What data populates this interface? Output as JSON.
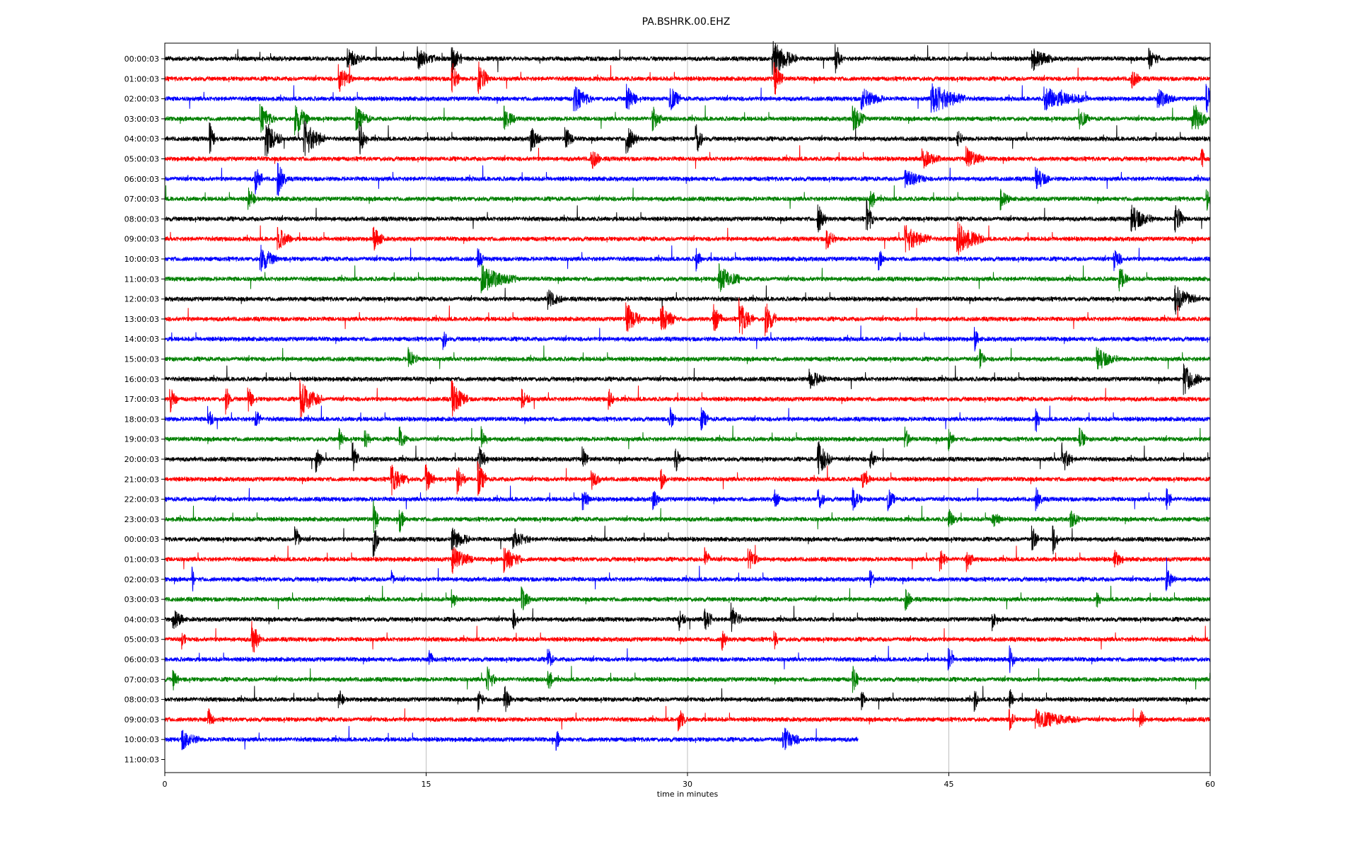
{
  "chart_data": {
    "type": "line",
    "title": "PA.BSHRK.00.EHZ",
    "xlabel": "time in minutes",
    "ylabel": "",
    "xlim": [
      0,
      60
    ],
    "x_ticks": [
      0,
      15,
      30,
      45,
      60
    ],
    "grid_vertical": true,
    "trace_colors": [
      "#000000",
      "#ff0000",
      "#0000ff",
      "#008000"
    ],
    "row_labels": [
      "00:00:03",
      "01:00:03",
      "02:00:03",
      "03:00:03",
      "04:00:03",
      "05:00:03",
      "06:00:03",
      "07:00:03",
      "08:00:03",
      "09:00:03",
      "10:00:03",
      "11:00:03",
      "12:00:03",
      "13:00:03",
      "14:00:03",
      "15:00:03",
      "16:00:03",
      "17:00:03",
      "18:00:03",
      "19:00:03",
      "20:00:03",
      "21:00:03",
      "22:00:03",
      "23:00:03",
      "00:00:03",
      "01:00:03",
      "02:00:03",
      "03:00:03",
      "04:00:03",
      "05:00:03",
      "06:00:03",
      "07:00:03",
      "08:00:03",
      "09:00:03",
      "10:00:03",
      "11:00:03"
    ],
    "last_trace_end_minute": 39.8,
    "events": [
      [
        [
          10.5,
          0.5,
          1.0
        ],
        [
          14.5,
          0.6,
          1.0
        ],
        [
          16.5,
          0.7,
          0.6
        ],
        [
          34.9,
          1.0,
          1.4
        ],
        [
          38.5,
          0.8,
          0.4
        ],
        [
          49.8,
          0.6,
          1.2
        ],
        [
          56.5,
          0.5,
          0.6
        ]
      ],
      [
        [
          10.0,
          0.7,
          0.8
        ],
        [
          16.5,
          0.9,
          0.4
        ],
        [
          18.0,
          1.0,
          0.6
        ],
        [
          35.0,
          0.9,
          0.5
        ],
        [
          55.5,
          0.5,
          0.5
        ]
      ],
      [
        [
          23.5,
          0.7,
          1.0
        ],
        [
          26.5,
          0.8,
          0.6
        ],
        [
          29.0,
          0.7,
          0.6
        ],
        [
          40.0,
          0.6,
          1.2
        ],
        [
          44.0,
          0.9,
          2.0
        ],
        [
          50.5,
          0.6,
          2.5
        ],
        [
          57.0,
          0.5,
          1.0
        ],
        [
          59.8,
          0.9,
          0.3
        ]
      ],
      [
        [
          5.5,
          0.7,
          0.8
        ],
        [
          7.5,
          0.9,
          0.8
        ],
        [
          11.0,
          0.6,
          0.8
        ],
        [
          19.5,
          0.6,
          0.6
        ],
        [
          28.0,
          0.7,
          0.5
        ],
        [
          39.5,
          0.8,
          0.7
        ],
        [
          52.5,
          0.6,
          0.5
        ],
        [
          59.0,
          1.0,
          0.8
        ]
      ],
      [
        [
          2.6,
          0.8,
          0.3
        ],
        [
          5.8,
          1.0,
          0.9
        ],
        [
          8.0,
          1.0,
          1.2
        ],
        [
          11.2,
          0.9,
          0.4
        ],
        [
          21.0,
          0.7,
          0.6
        ],
        [
          23.0,
          0.6,
          0.5
        ],
        [
          26.5,
          0.8,
          0.7
        ],
        [
          30.5,
          0.9,
          0.4
        ],
        [
          45.5,
          0.5,
          0.3
        ]
      ],
      [
        [
          24.5,
          0.6,
          0.5
        ],
        [
          43.5,
          0.5,
          1.0
        ],
        [
          46.0,
          0.6,
          1.0
        ],
        [
          59.5,
          0.7,
          0.2
        ]
      ],
      [
        [
          5.2,
          0.8,
          0.4
        ],
        [
          6.5,
          0.9,
          0.5
        ],
        [
          42.5,
          0.5,
          1.2
        ],
        [
          50.0,
          0.6,
          0.8
        ]
      ],
      [
        [
          4.8,
          0.6,
          0.4
        ],
        [
          40.5,
          0.7,
          0.3
        ],
        [
          48.0,
          0.5,
          0.5
        ],
        [
          59.8,
          0.6,
          0.3
        ]
      ],
      [
        [
          37.5,
          0.8,
          0.5
        ],
        [
          40.3,
          0.9,
          0.4
        ],
        [
          55.5,
          0.7,
          1.2
        ],
        [
          58.0,
          0.9,
          0.5
        ]
      ],
      [
        [
          6.5,
          0.6,
          0.8
        ],
        [
          12.0,
          0.6,
          0.6
        ],
        [
          38.0,
          0.6,
          0.5
        ],
        [
          42.5,
          0.7,
          1.5
        ],
        [
          45.5,
          0.9,
          1.5
        ]
      ],
      [
        [
          5.5,
          0.7,
          1.0
        ],
        [
          18.0,
          0.5,
          0.3
        ],
        [
          30.5,
          0.6,
          0.3
        ],
        [
          41.0,
          0.5,
          0.3
        ],
        [
          54.5,
          0.6,
          0.5
        ]
      ],
      [
        [
          18.2,
          0.7,
          2.0
        ],
        [
          31.8,
          0.8,
          1.2
        ],
        [
          54.8,
          0.6,
          0.5
        ]
      ],
      [
        [
          22.0,
          0.5,
          0.8
        ],
        [
          58.0,
          0.8,
          1.2
        ]
      ],
      [
        [
          26.5,
          0.9,
          0.8
        ],
        [
          28.5,
          0.8,
          0.9
        ],
        [
          31.5,
          0.8,
          0.5
        ],
        [
          33.0,
          1.0,
          0.8
        ],
        [
          34.5,
          0.9,
          0.6
        ]
      ],
      [
        [
          16.0,
          0.6,
          0.2
        ],
        [
          46.5,
          0.6,
          0.2
        ]
      ],
      [
        [
          14.0,
          0.6,
          0.5
        ],
        [
          46.8,
          0.5,
          0.3
        ],
        [
          53.5,
          0.6,
          1.2
        ]
      ],
      [
        [
          37.0,
          0.5,
          1.0
        ],
        [
          58.5,
          0.8,
          1.0
        ]
      ],
      [
        [
          0.3,
          0.7,
          0.4
        ],
        [
          3.5,
          0.8,
          0.3
        ],
        [
          4.8,
          0.7,
          0.3
        ],
        [
          7.8,
          1.0,
          1.2
        ],
        [
          16.5,
          0.9,
          0.9
        ],
        [
          20.5,
          0.5,
          0.5
        ],
        [
          25.5,
          0.5,
          0.3
        ]
      ],
      [
        [
          2.5,
          0.7,
          0.3
        ],
        [
          5.2,
          0.6,
          0.3
        ],
        [
          29.0,
          0.6,
          0.3
        ],
        [
          30.8,
          0.6,
          0.4
        ],
        [
          50.0,
          0.7,
          0.2
        ]
      ],
      [
        [
          10.0,
          0.6,
          0.3
        ],
        [
          11.5,
          0.6,
          0.3
        ],
        [
          13.5,
          0.6,
          0.4
        ],
        [
          18.2,
          0.6,
          0.3
        ],
        [
          42.5,
          0.6,
          0.3
        ],
        [
          45.0,
          0.6,
          0.3
        ],
        [
          52.5,
          0.7,
          0.4
        ]
      ],
      [
        [
          8.7,
          0.7,
          0.3
        ],
        [
          10.8,
          0.8,
          0.4
        ],
        [
          18.0,
          0.7,
          0.6
        ],
        [
          24.0,
          0.6,
          0.3
        ],
        [
          29.3,
          0.8,
          0.3
        ],
        [
          37.5,
          1.0,
          0.8
        ],
        [
          40.5,
          0.5,
          0.4
        ],
        [
          51.5,
          0.8,
          0.6
        ]
      ],
      [
        [
          13.0,
          0.8,
          1.0
        ],
        [
          15.0,
          0.7,
          0.5
        ],
        [
          16.8,
          0.7,
          0.5
        ],
        [
          18.0,
          0.9,
          0.5
        ],
        [
          24.5,
          0.5,
          0.5
        ],
        [
          28.5,
          0.5,
          0.3
        ],
        [
          40.0,
          0.5,
          0.5
        ]
      ],
      [
        [
          24.0,
          0.6,
          0.4
        ],
        [
          28.0,
          0.6,
          0.4
        ],
        [
          35.0,
          0.5,
          0.3
        ],
        [
          37.5,
          0.6,
          0.4
        ],
        [
          39.5,
          0.6,
          0.5
        ],
        [
          41.5,
          0.6,
          0.4
        ],
        [
          50.0,
          0.6,
          0.4
        ],
        [
          57.5,
          0.6,
          0.3
        ]
      ],
      [
        [
          12.0,
          0.9,
          0.3
        ],
        [
          13.5,
          0.6,
          0.3
        ],
        [
          45.0,
          0.5,
          0.5
        ],
        [
          47.5,
          0.5,
          0.5
        ],
        [
          52.0,
          0.5,
          0.5
        ]
      ],
      [
        [
          7.5,
          0.7,
          0.3
        ],
        [
          12.0,
          0.9,
          0.3
        ],
        [
          16.5,
          0.6,
          1.0
        ],
        [
          20.0,
          0.5,
          1.0
        ],
        [
          49.8,
          0.7,
          0.3
        ],
        [
          51.0,
          0.7,
          0.3
        ]
      ],
      [
        [
          16.5,
          0.7,
          1.2
        ],
        [
          19.5,
          0.7,
          1.0
        ],
        [
          31.0,
          0.6,
          0.3
        ],
        [
          33.5,
          0.6,
          0.6
        ],
        [
          44.5,
          0.6,
          0.4
        ],
        [
          46.0,
          0.7,
          0.4
        ],
        [
          54.5,
          0.5,
          0.5
        ]
      ],
      [
        [
          1.6,
          0.6,
          0.1
        ],
        [
          13.0,
          0.4,
          0.2
        ],
        [
          40.5,
          0.5,
          0.2
        ],
        [
          57.5,
          0.6,
          0.5
        ]
      ],
      [
        [
          16.5,
          0.6,
          0.3
        ],
        [
          20.5,
          0.6,
          0.5
        ],
        [
          42.5,
          0.6,
          0.4
        ],
        [
          53.5,
          0.4,
          0.2
        ]
      ],
      [
        [
          0.5,
          0.6,
          0.6
        ],
        [
          20.0,
          0.5,
          0.3
        ],
        [
          29.5,
          0.6,
          0.4
        ],
        [
          31.0,
          0.7,
          0.5
        ],
        [
          32.5,
          0.8,
          0.6
        ],
        [
          47.5,
          0.6,
          0.2
        ]
      ],
      [
        [
          1.0,
          0.5,
          0.2
        ],
        [
          5.0,
          1.0,
          0.5
        ],
        [
          32.0,
          0.6,
          0.3
        ],
        [
          35.0,
          0.5,
          0.2
        ]
      ],
      [
        [
          15.2,
          0.5,
          0.2
        ],
        [
          22.0,
          0.6,
          0.3
        ],
        [
          45.0,
          0.6,
          0.3
        ],
        [
          48.5,
          0.7,
          0.3
        ]
      ],
      [
        [
          0.5,
          0.5,
          0.3
        ],
        [
          18.5,
          0.7,
          0.5
        ],
        [
          22.0,
          0.7,
          0.3
        ],
        [
          39.5,
          0.7,
          0.3
        ]
      ],
      [
        [
          10.0,
          0.5,
          0.3
        ],
        [
          18.0,
          0.6,
          0.3
        ],
        [
          19.5,
          0.8,
          0.4
        ],
        [
          40.0,
          0.5,
          0.2
        ],
        [
          46.5,
          0.6,
          0.2
        ],
        [
          48.5,
          0.6,
          0.2
        ]
      ],
      [
        [
          2.5,
          0.6,
          0.3
        ],
        [
          29.5,
          0.7,
          0.4
        ],
        [
          48.5,
          0.6,
          0.3
        ],
        [
          50.0,
          0.5,
          2.5
        ],
        [
          56.0,
          0.6,
          0.3
        ]
      ],
      [
        [
          1.0,
          0.5,
          1.0
        ],
        [
          22.5,
          0.5,
          0.2
        ],
        [
          35.5,
          0.7,
          1.0
        ]
      ],
      []
    ]
  }
}
